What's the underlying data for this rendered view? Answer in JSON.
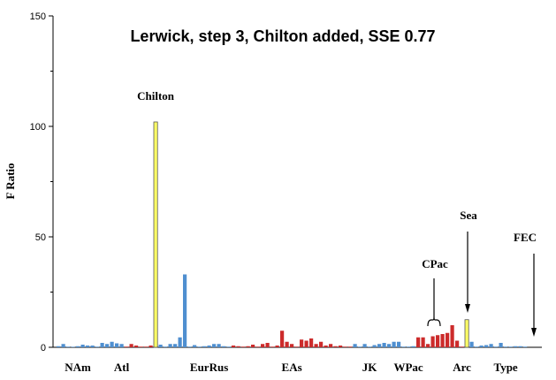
{
  "chart_data": {
    "type": "bar",
    "title": "Lerwick, step 3, Chilton added, SSE 0.77",
    "ylabel": "F Ratio",
    "xlabel": "",
    "ylim": [
      0,
      150
    ],
    "yticks": [
      0,
      50,
      100,
      150
    ],
    "yticks_minor": [
      25,
      75,
      125
    ],
    "grid": false,
    "legend": "none",
    "colors": {
      "blue": "#4f8fd0",
      "red": "#cc2b2b",
      "yellow": "#ffff66"
    },
    "bar_colors": [
      "blue",
      "blue",
      "blue",
      "blue",
      "blue",
      "blue",
      "blue",
      "blue",
      "blue",
      "blue",
      "blue",
      "blue",
      "blue",
      "blue",
      "red",
      "red",
      "red",
      "red",
      "red",
      "red",
      "yellow",
      "blue",
      "blue",
      "blue",
      "blue",
      "blue",
      "blue",
      "blue",
      "blue",
      "blue",
      "blue",
      "blue",
      "blue",
      "blue",
      "blue",
      "blue",
      "red",
      "red",
      "red",
      "red",
      "red",
      "red",
      "red",
      "red",
      "red",
      "red",
      "red",
      "red",
      "red",
      "red",
      "red",
      "red",
      "red",
      "red",
      "red",
      "red",
      "red",
      "red",
      "red",
      "red",
      "red",
      "blue",
      "blue",
      "blue",
      "blue",
      "blue",
      "blue",
      "blue",
      "blue",
      "blue",
      "blue",
      "blue",
      "blue",
      "blue",
      "red",
      "red",
      "red",
      "red",
      "red",
      "red",
      "red",
      "red",
      "red",
      "red",
      "yellow",
      "blue",
      "blue",
      "blue",
      "blue",
      "blue",
      "blue",
      "blue",
      "blue",
      "blue",
      "blue",
      "blue",
      "blue"
    ],
    "values": [
      0.5,
      1.5,
      0.3,
      0.2,
      0.5,
      1.2,
      0.8,
      0.8,
      0.3,
      2,
      1.5,
      2.5,
      1.8,
      1.5,
      0.3,
      1.5,
      0.8,
      0.3,
      0.3,
      0.8,
      102,
      1.2,
      0.3,
      1.5,
      1.5,
      4.5,
      33,
      0.3,
      1,
      0.3,
      0.5,
      0.8,
      1.5,
      1.5,
      0.5,
      0.3,
      0.8,
      0.5,
      0.3,
      0.5,
      1.2,
      0.3,
      1.5,
      2,
      0.3,
      0.8,
      7.5,
      2.5,
      1.5,
      0.3,
      3.5,
      3,
      4,
      1.5,
      2.5,
      0.8,
      1.5,
      0.5,
      0.8,
      0.3,
      0.3,
      1.5,
      0.3,
      1.5,
      0.3,
      1,
      1.5,
      2,
      1.5,
      2.5,
      2.5,
      0.3,
      0.3,
      0.5,
      4.5,
      4.5,
      1.5,
      5,
      5.5,
      6,
      6.5,
      10,
      3,
      0.3,
      12.5,
      2.5,
      0.3,
      0.8,
      1,
      1.5,
      0.3,
      2,
      0.3,
      0.3,
      0.5,
      0.5,
      0.3
    ],
    "group_labels": [
      {
        "label": "NAm",
        "bar": 4
      },
      {
        "label": "Atl",
        "bar": 13
      },
      {
        "label": "EurRus",
        "bar": 31
      },
      {
        "label": "EAs",
        "bar": 48
      },
      {
        "label": "JK",
        "bar": 64
      },
      {
        "label": "WPac",
        "bar": 72
      },
      {
        "label": "Arc",
        "bar": 83
      },
      {
        "label": "Type",
        "bar": 92
      }
    ],
    "annotations": [
      {
        "text": "Chilton",
        "type": "label",
        "bar": 20
      },
      {
        "text": "CPac",
        "type": "brace"
      },
      {
        "text": "Sea",
        "type": "arrow",
        "bar": 84
      },
      {
        "text": "FEC",
        "type": "arrow",
        "bar": 98
      }
    ]
  }
}
